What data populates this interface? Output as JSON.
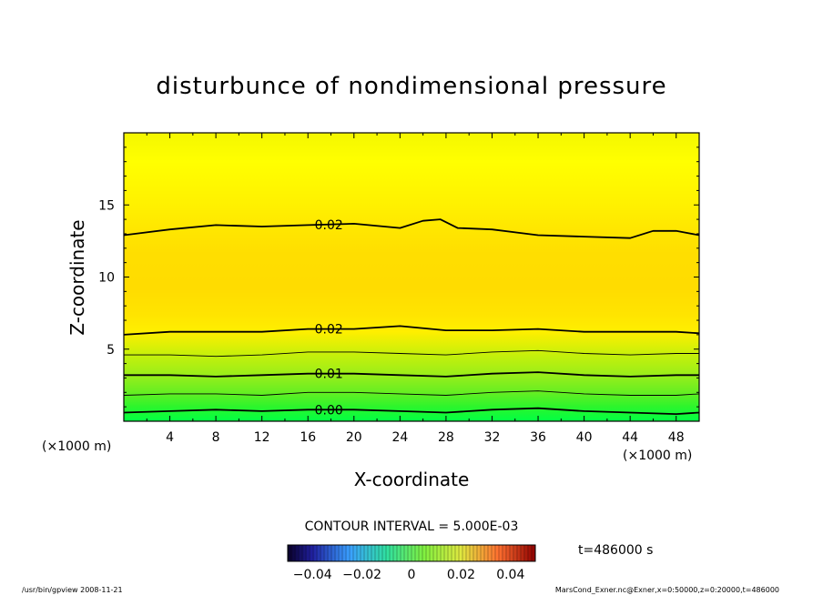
{
  "chart_data": {
    "type": "heatmap",
    "title": "disturbunce of nondimensional pressure",
    "xlabel": "X-coordinate",
    "ylabel": "Z-coordinate",
    "xunit": "(×1000 m)",
    "yunit": "(×1000 m)",
    "xlim": [
      0,
      50
    ],
    "ylim": [
      0,
      20
    ],
    "xticks": [
      4,
      8,
      12,
      16,
      20,
      24,
      28,
      32,
      36,
      40,
      44,
      48
    ],
    "yticks": [
      5,
      10,
      15
    ],
    "contour_interval_label": "CONTOUR INTERVAL = 5.000E-03",
    "time_label": "t=486000 s",
    "colorbar": {
      "min": -0.05,
      "max": 0.05,
      "tick_values": [
        -0.04,
        -0.02,
        0,
        0.02,
        0.04
      ],
      "tick_labels": [
        "−0.04",
        "−0.02",
        "0",
        "0.02",
        "0.04"
      ]
    },
    "contours": [
      {
        "level": 0.0,
        "label": "0.00",
        "bold": true,
        "label_x": 17.5,
        "z": [
          [
            0,
            0.6
          ],
          [
            4,
            0.7
          ],
          [
            8,
            0.8
          ],
          [
            12,
            0.7
          ],
          [
            16,
            0.8
          ],
          [
            20,
            0.8
          ],
          [
            24,
            0.7
          ],
          [
            28,
            0.6
          ],
          [
            32,
            0.8
          ],
          [
            36,
            0.9
          ],
          [
            40,
            0.7
          ],
          [
            44,
            0.6
          ],
          [
            48,
            0.5
          ],
          [
            50,
            0.6
          ]
        ]
      },
      {
        "level": 0.005,
        "label": "",
        "bold": false,
        "label_x": null,
        "z": [
          [
            0,
            1.8
          ],
          [
            4,
            1.9
          ],
          [
            8,
            1.9
          ],
          [
            12,
            1.8
          ],
          [
            16,
            2.0
          ],
          [
            20,
            2.0
          ],
          [
            24,
            1.9
          ],
          [
            28,
            1.8
          ],
          [
            32,
            2.0
          ],
          [
            36,
            2.1
          ],
          [
            40,
            1.9
          ],
          [
            44,
            1.8
          ],
          [
            48,
            1.8
          ],
          [
            50,
            1.9
          ]
        ]
      },
      {
        "level": 0.01,
        "label": "0.01",
        "bold": true,
        "label_x": 17.5,
        "z": [
          [
            0,
            3.2
          ],
          [
            4,
            3.2
          ],
          [
            8,
            3.1
          ],
          [
            12,
            3.2
          ],
          [
            16,
            3.3
          ],
          [
            20,
            3.3
          ],
          [
            24,
            3.2
          ],
          [
            28,
            3.1
          ],
          [
            32,
            3.3
          ],
          [
            36,
            3.4
          ],
          [
            40,
            3.2
          ],
          [
            44,
            3.1
          ],
          [
            48,
            3.2
          ],
          [
            50,
            3.2
          ]
        ]
      },
      {
        "level": 0.015,
        "label": "",
        "bold": false,
        "label_x": null,
        "z": [
          [
            0,
            4.6
          ],
          [
            4,
            4.6
          ],
          [
            8,
            4.5
          ],
          [
            12,
            4.6
          ],
          [
            16,
            4.8
          ],
          [
            20,
            4.8
          ],
          [
            24,
            4.7
          ],
          [
            28,
            4.6
          ],
          [
            32,
            4.8
          ],
          [
            36,
            4.9
          ],
          [
            40,
            4.7
          ],
          [
            44,
            4.6
          ],
          [
            48,
            4.7
          ],
          [
            50,
            4.7
          ]
        ]
      },
      {
        "level": 0.02,
        "label": "0.02",
        "bold": true,
        "label_x": 17.5,
        "z": [
          [
            0,
            6.0
          ],
          [
            4,
            6.2
          ],
          [
            8,
            6.2
          ],
          [
            12,
            6.2
          ],
          [
            16,
            6.4
          ],
          [
            20,
            6.4
          ],
          [
            24,
            6.6
          ],
          [
            28,
            6.3
          ],
          [
            32,
            6.3
          ],
          [
            36,
            6.4
          ],
          [
            40,
            6.2
          ],
          [
            44,
            6.2
          ],
          [
            48,
            6.2
          ],
          [
            50,
            6.1
          ]
        ]
      },
      {
        "level": 0.02,
        "label": "0.02",
        "bold": true,
        "label_x": 17.5,
        "z": [
          [
            0,
            12.9
          ],
          [
            4,
            13.3
          ],
          [
            8,
            13.6
          ],
          [
            12,
            13.5
          ],
          [
            16,
            13.6
          ],
          [
            20,
            13.7
          ],
          [
            24,
            13.4
          ],
          [
            26,
            13.9
          ],
          [
            27.5,
            14.0
          ],
          [
            29,
            13.4
          ],
          [
            32,
            13.3
          ],
          [
            36,
            12.9
          ],
          [
            40,
            12.8
          ],
          [
            44,
            12.7
          ],
          [
            46,
            13.2
          ],
          [
            48,
            13.2
          ],
          [
            50,
            12.9
          ]
        ]
      }
    ],
    "grid": false
  },
  "footer": {
    "left": "/usr/bin/gpview   2008-11-21",
    "right": "MarsCond_Exner.nc@Exner,x=0:50000,z=0:20000,t=486000"
  },
  "colors": {
    "frame": "#000000",
    "field_bands": [
      "#00ff44",
      "#2cf52c",
      "#66ee22",
      "#99ee1a",
      "#c6f00a",
      "#e8f000",
      "#fff200",
      "#ffe600",
      "#ffdd00"
    ]
  }
}
